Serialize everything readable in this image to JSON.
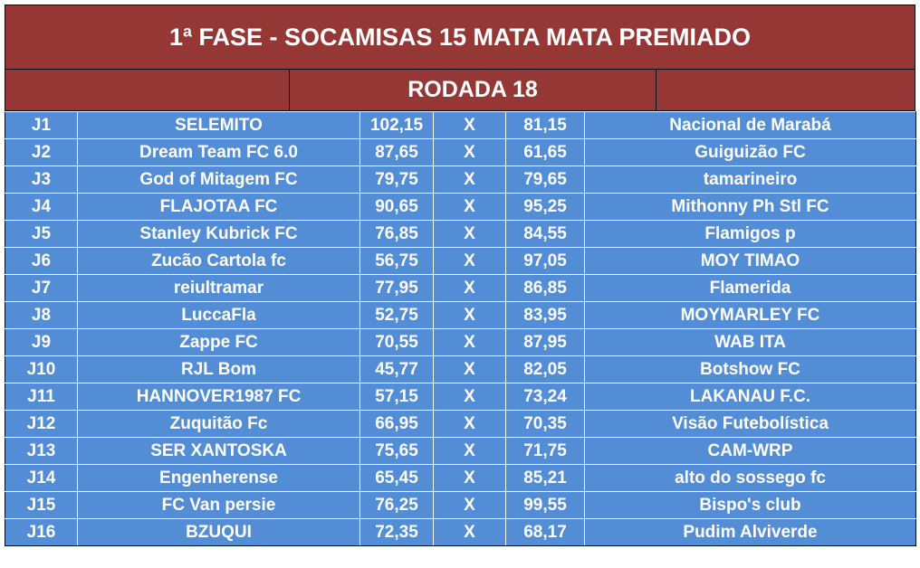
{
  "title": "1ª FASE - SOCAMISAS 15 MATA MATA PREMIADO",
  "round": "RODADA 18",
  "colors": {
    "header_bg": "#953735",
    "cell_bg": "#538dd5",
    "text": "#ffffff"
  },
  "matches": [
    {
      "id": "J1",
      "home": "SELEMITO",
      "home_score": "102,15",
      "vs": "X",
      "away_score": "81,15",
      "away": "Nacional de Marabá"
    },
    {
      "id": "J2",
      "home": "Dream Team FC 6.0",
      "home_score": "87,65",
      "vs": "X",
      "away_score": "61,65",
      "away": "Guiguizão FC"
    },
    {
      "id": "J3",
      "home": "God of Mitagem FC",
      "home_score": "79,75",
      "vs": "X",
      "away_score": "79,65",
      "away": "tamarineiro"
    },
    {
      "id": "J4",
      "home": "FLAJOTAA FC",
      "home_score": "90,65",
      "vs": "X",
      "away_score": "95,25",
      "away": "Mithonny Ph Stl FC"
    },
    {
      "id": "J5",
      "home": "Stanley Kubrick FC",
      "home_score": "76,85",
      "vs": "X",
      "away_score": "84,55",
      "away": "Flamigos p"
    },
    {
      "id": "J6",
      "home": "Zucão Cartola fc",
      "home_score": "56,75",
      "vs": "X",
      "away_score": "97,05",
      "away": "MOY TIMAO"
    },
    {
      "id": "J7",
      "home": "reiultramar",
      "home_score": "77,95",
      "vs": "X",
      "away_score": "86,85",
      "away": "Flamerida"
    },
    {
      "id": "J8",
      "home": "LuccaFla",
      "home_score": "52,75",
      "vs": "X",
      "away_score": "83,95",
      "away": "MOYMARLEY FC"
    },
    {
      "id": "J9",
      "home": "Zappe FC",
      "home_score": "70,55",
      "vs": "X",
      "away_score": "87,95",
      "away": "WAB ITA"
    },
    {
      "id": "J10",
      "home": "RJL Bom",
      "home_score": "45,77",
      "vs": "X",
      "away_score": "82,05",
      "away": "Botshow FC"
    },
    {
      "id": "J11",
      "home": "HANNOVER1987 FC",
      "home_score": "57,15",
      "vs": "X",
      "away_score": "73,24",
      "away": "LAKANAU F.C."
    },
    {
      "id": "J12",
      "home": "Zuquitão Fc",
      "home_score": "66,95",
      "vs": "X",
      "away_score": "70,35",
      "away": "Visão Futebolística"
    },
    {
      "id": "J13",
      "home": "SER XANTOSKA",
      "home_score": "75,65",
      "vs": "X",
      "away_score": "71,75",
      "away": "CAM-WRP"
    },
    {
      "id": "J14",
      "home": "Engenherense",
      "home_score": "65,45",
      "vs": "X",
      "away_score": "85,21",
      "away": "alto do sossego fc"
    },
    {
      "id": "J15",
      "home": "FC Van persie",
      "home_score": "76,25",
      "vs": "X",
      "away_score": "99,55",
      "away": "Bispo's club"
    },
    {
      "id": "J16",
      "home": "BZUQUI",
      "home_score": "72,35",
      "vs": "X",
      "away_score": "68,17",
      "away": "Pudim Alviverde"
    }
  ]
}
